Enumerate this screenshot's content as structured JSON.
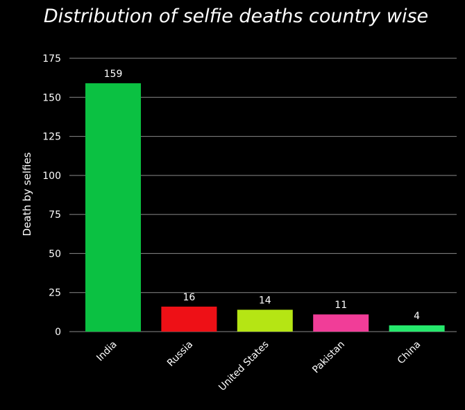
{
  "chart_data": {
    "type": "bar",
    "title": "Distribution of selfie deaths country wise",
    "xlabel": "",
    "ylabel": "Death by selfies",
    "categories": [
      "India",
      "Russia",
      "United States",
      "Pakistan",
      "China"
    ],
    "values": [
      159,
      16,
      14,
      11,
      4
    ],
    "value_labels": [
      "159",
      "16",
      "14",
      "11",
      "4"
    ],
    "colors": [
      "#0bc142",
      "#ee1016",
      "#b5e514",
      "#f13d98",
      "#25e86c"
    ],
    "ylim": [
      0,
      175
    ],
    "yticks": [
      0,
      25,
      50,
      75,
      100,
      125,
      150,
      175
    ],
    "grid": true,
    "background": "#000000",
    "grid_color": "#8a8a8a"
  }
}
